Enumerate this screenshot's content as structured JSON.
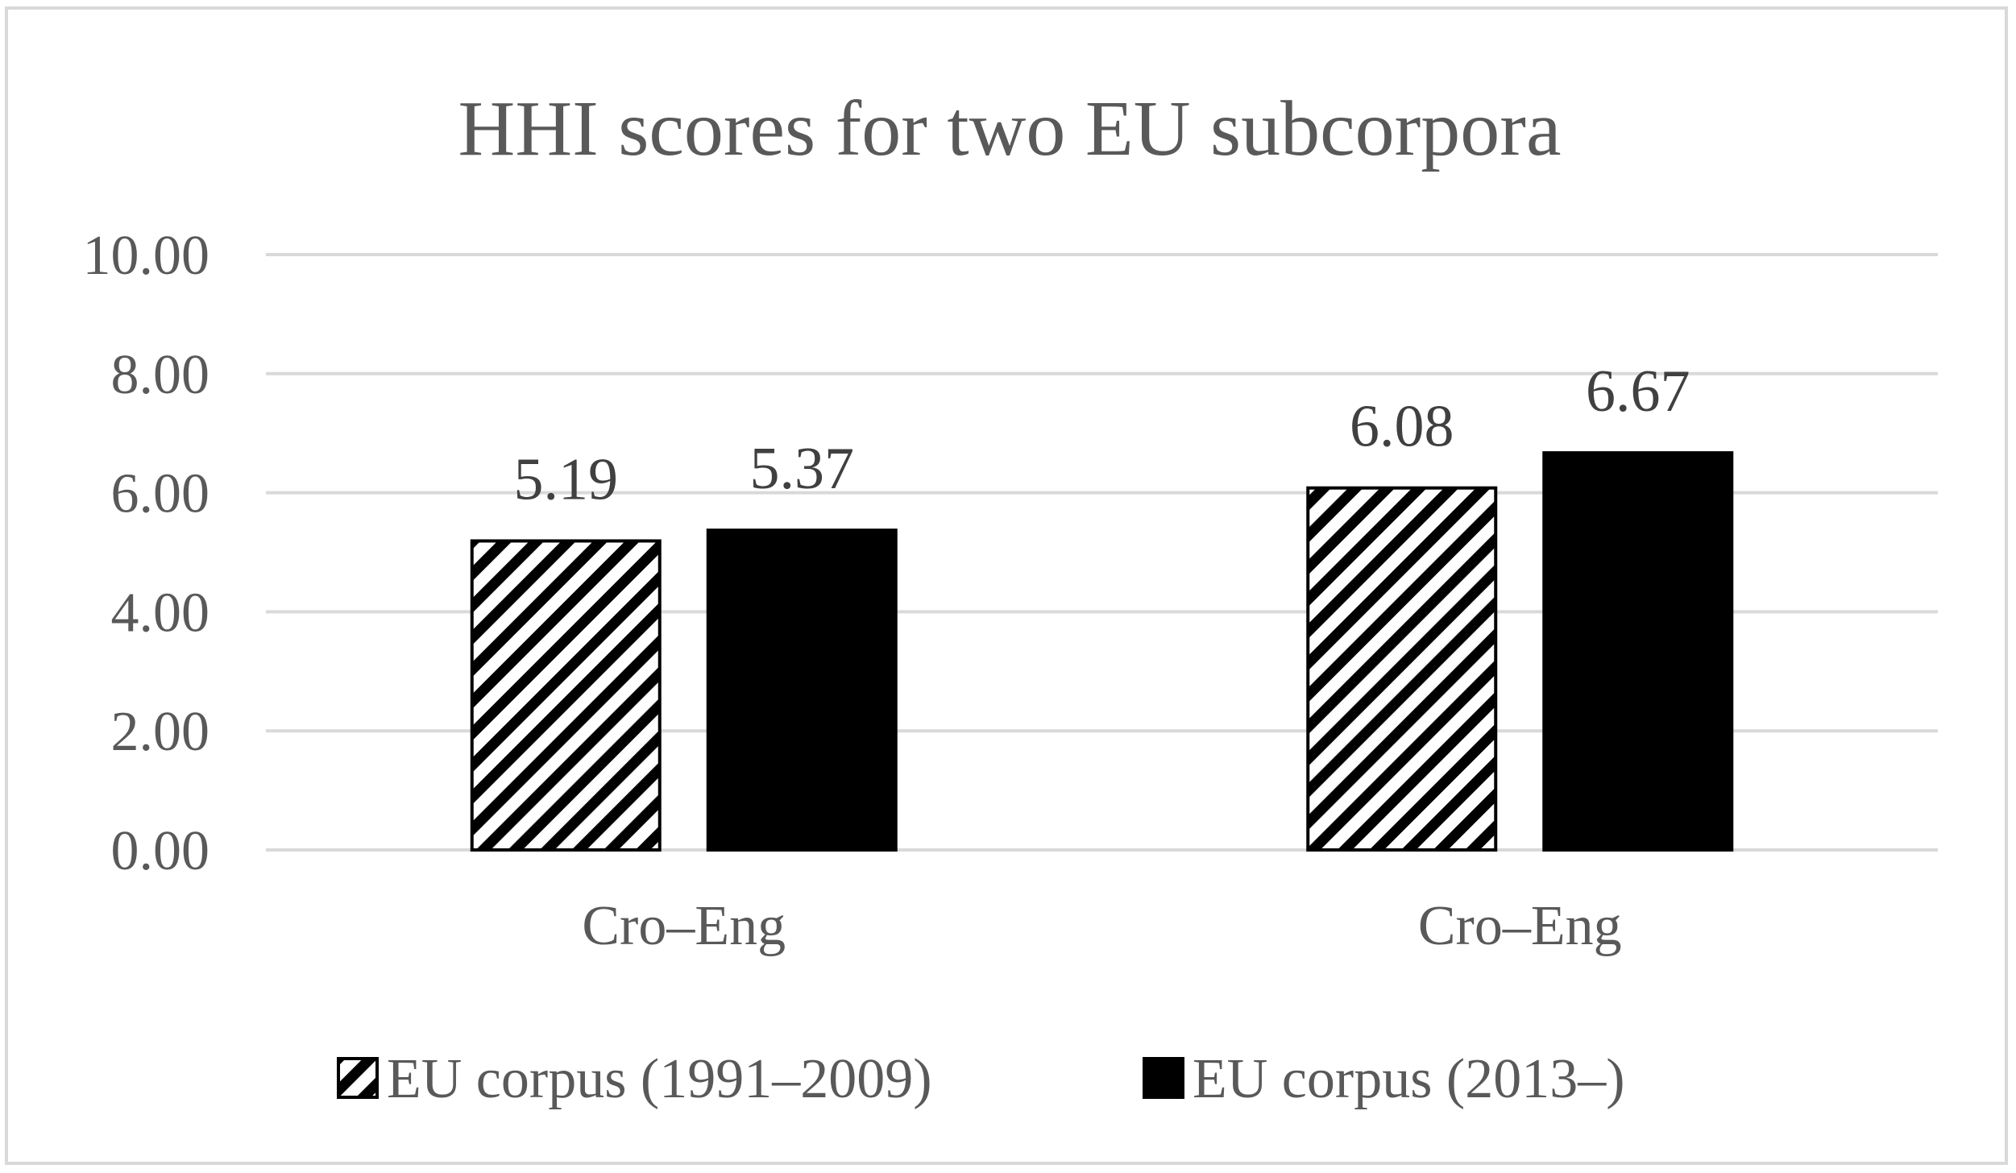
{
  "chart_data": {
    "type": "bar",
    "title": "HHI scores for two EU subcorpora",
    "categories": [
      "Cro–Eng",
      "Cro–Eng"
    ],
    "series": [
      {
        "name": "EU corpus (1991–2009)",
        "values": [
          5.19,
          6.08
        ],
        "labels": [
          "5.19",
          "6.08"
        ],
        "fill": "hatch"
      },
      {
        "name": "EU corpus (2013–)",
        "values": [
          5.37,
          6.67
        ],
        "labels": [
          "5.37",
          "6.67"
        ],
        "fill": "#000000"
      }
    ],
    "y_ticks": [
      "0.00",
      "2.00",
      "4.00",
      "6.00",
      "8.00",
      "10.00"
    ],
    "ylim": [
      0,
      10
    ],
    "grid": true,
    "legend": "bottom",
    "colors": {
      "grid": "#d9d9d9",
      "text": "#595959",
      "bar_solid": "#000000"
    }
  }
}
